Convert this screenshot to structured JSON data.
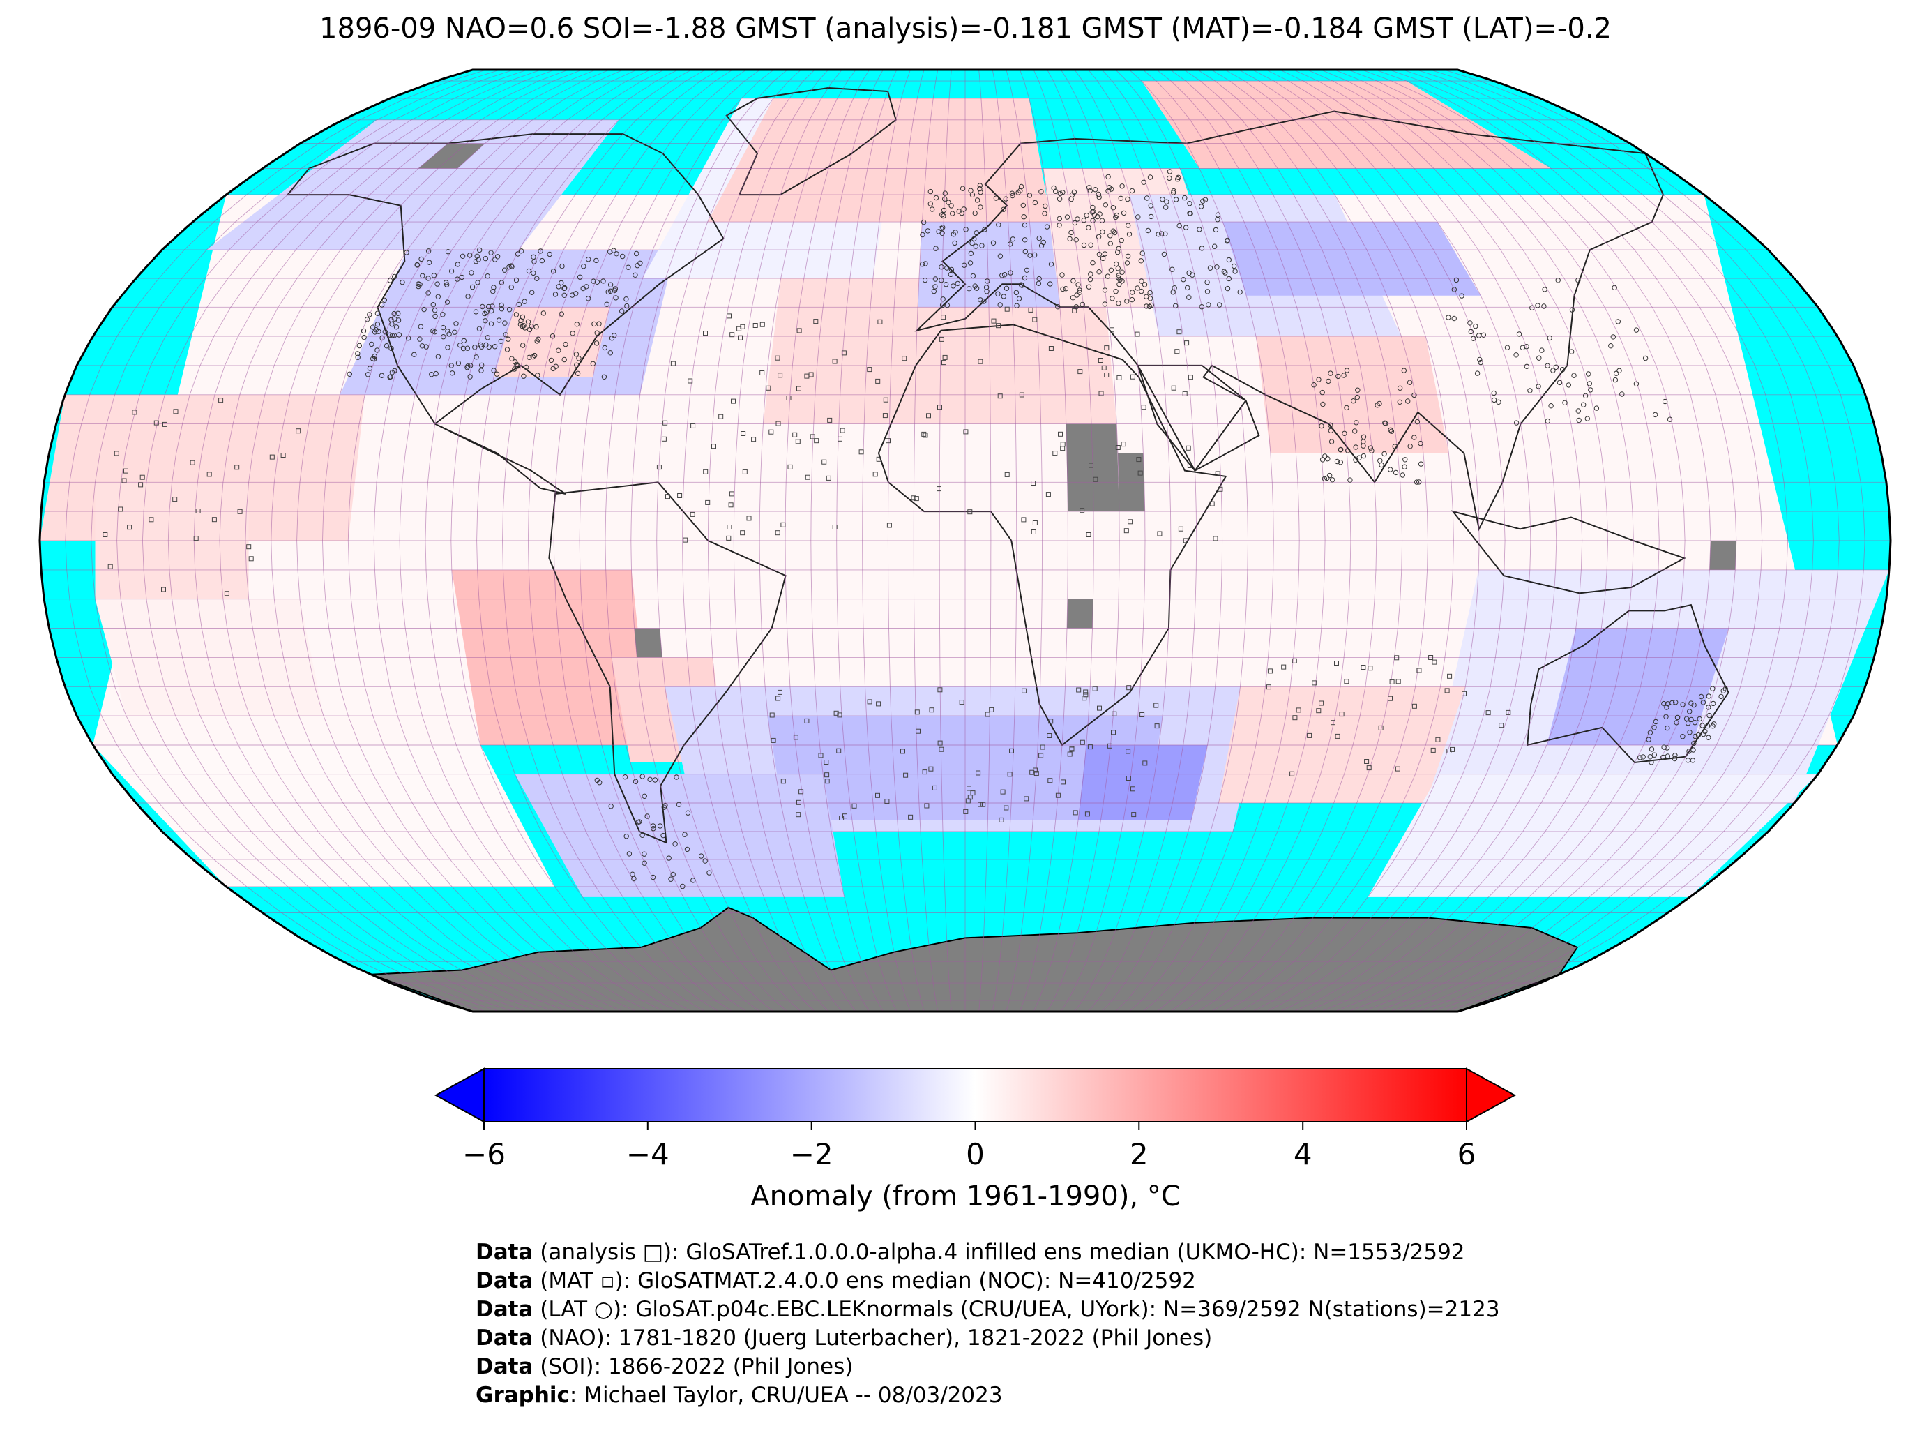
{
  "title": "1896-09 NAO=0.6 SOI=-1.88 GMST (analysis)=-0.181 GMST (MAT)=-0.184 GMST (LAT)=-0.2",
  "colorbar": {
    "label": "Anomaly (from 1961-1990), °C",
    "ticks": [
      "−6",
      "−4",
      "−2",
      "0",
      "2",
      "4",
      "6"
    ],
    "min": -6,
    "max": 6,
    "colors": {
      "low": "#0000ff",
      "mid": "#ffffff",
      "high": "#ff0000"
    }
  },
  "map": {
    "projection": "robinson",
    "ocean_no_data_color": "#00ffff",
    "missing_color": "#808080",
    "grid_color": "#a05aa0"
  },
  "credits": [
    {
      "label": "Data",
      "text": " (analysis □): GloSATref.1.0.0.0-alpha.4 infilled ens median (UKMO-HC): N=1553/2592"
    },
    {
      "label": "Data",
      "text": " (MAT ▫): GloSATMAT.2.4.0.0 ens median (NOC): N=410/2592"
    },
    {
      "label": "Data",
      "text": " (LAT ○): GloSAT.p04c.EBC.LEKnormals (CRU/UEA, UYork): N=369/2592 N(stations)=2123"
    },
    {
      "label": "Data",
      "text": " (NAO): 1781-1820 (Juerg Luterbacher), 1821-2022 (Phil Jones)"
    },
    {
      "label": "Data",
      "text": " (SOI): 1866-2022 (Phil Jones)"
    },
    {
      "label": "Graphic",
      "text": ": Michael Taylor, CRU/UEA -- 08/03/2023"
    }
  ]
}
